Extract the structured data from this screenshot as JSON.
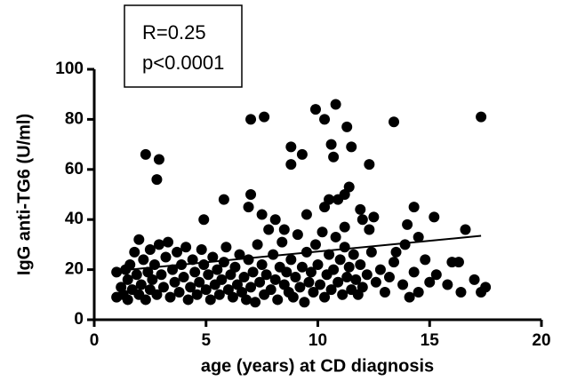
{
  "chart_data": {
    "type": "scatter",
    "xlabel": "age (years) at CD diagnosis",
    "ylabel": "IgG anti-TG6 (U/ml)",
    "annotations": [
      "R=0.25",
      "p<0.0001"
    ],
    "xlim": [
      0,
      20
    ],
    "xticks": [
      0,
      5,
      10,
      15,
      20
    ],
    "ylim": [
      0,
      100
    ],
    "yticks": [
      0,
      20,
      40,
      60,
      80,
      100
    ],
    "color": "#000000",
    "series": [
      {
        "x": [
          2.3,
          2.9,
          2.8,
          7.0,
          7.6,
          9.9,
          10.8,
          10.3,
          11.3,
          10.6,
          11.5,
          8.8,
          9.3,
          8.8,
          10.7,
          12.3,
          13.4,
          17.3,
          5.8,
          7.0,
          6.9,
          10.9,
          11.4,
          11.2,
          10.5,
          11.9,
          10.3,
          14.3,
          15.2,
          14.0,
          12.5,
          12.0,
          8.1,
          9.5,
          7.5,
          4.9,
          16.6,
          11.2,
          12.3,
          13.9,
          14.5,
          13.5,
          8.5,
          1.0,
          1.0,
          1.2,
          1.3,
          1.4,
          1.5,
          1.5,
          1.6,
          1.7,
          1.8,
          1.9,
          2.0,
          2.0,
          2.1,
          2.2,
          2.3,
          2.4,
          2.5,
          2.5,
          2.6,
          2.7,
          2.8,
          2.9,
          3.0,
          3.1,
          3.2,
          3.3,
          3.4,
          3.5,
          3.6,
          3.7,
          3.8,
          3.9,
          4.0,
          4.1,
          4.2,
          4.3,
          4.4,
          4.5,
          4.6,
          4.7,
          4.8,
          4.9,
          5.0,
          5.1,
          5.2,
          5.3,
          5.4,
          5.5,
          5.6,
          5.7,
          5.8,
          5.9,
          6.0,
          6.1,
          6.2,
          6.3,
          6.4,
          6.5,
          6.6,
          6.7,
          6.8,
          6.9,
          7.0,
          7.1,
          7.2,
          7.3,
          7.4,
          7.5,
          7.6,
          7.7,
          7.8,
          7.9,
          8.0,
          8.1,
          8.2,
          8.3,
          8.4,
          8.5,
          8.6,
          8.7,
          8.8,
          8.9,
          9.0,
          9.1,
          9.2,
          9.3,
          9.4,
          9.5,
          9.6,
          9.7,
          9.8,
          9.9,
          10.0,
          10.1,
          10.2,
          10.3,
          10.4,
          10.5,
          10.6,
          10.7,
          10.8,
          10.9,
          11.0,
          11.1,
          11.2,
          11.3,
          11.4,
          11.5,
          11.6,
          11.7,
          11.8,
          11.9,
          12.0,
          12.2,
          12.4,
          12.6,
          12.8,
          13.0,
          13.2,
          13.4,
          13.8,
          14.1,
          14.3,
          14.5,
          14.8,
          15.0,
          15.3,
          15.8,
          16.0,
          16.3,
          16.4,
          17.0,
          17.3,
          17.5
        ],
        "values": [
          66,
          64,
          56,
          80,
          81,
          84,
          86,
          80,
          77,
          70,
          69,
          69,
          66,
          62,
          65,
          62,
          79,
          81,
          48,
          50,
          45,
          48,
          53,
          50,
          48,
          44,
          45,
          45,
          41,
          38,
          41,
          40,
          40,
          42,
          42,
          40,
          36,
          37,
          36,
          30,
          33,
          27,
          36,
          9,
          19,
          13,
          10,
          20,
          16,
          8,
          22,
          12,
          27,
          18,
          32,
          10,
          14,
          24,
          8,
          19,
          28,
          12,
          16,
          22,
          10,
          30,
          18,
          13,
          25,
          31,
          9,
          20,
          15,
          27,
          11,
          22,
          17,
          29,
          8,
          13,
          24,
          19,
          10,
          15,
          28,
          22,
          12,
          18,
          8,
          25,
          14,
          20,
          10,
          16,
          23,
          29,
          12,
          18,
          9,
          21,
          14,
          26,
          11,
          17,
          8,
          24,
          13,
          19,
          7,
          30,
          15,
          22,
          10,
          18,
          36,
          12,
          26,
          16,
          8,
          21,
          31,
          14,
          19,
          11,
          24,
          9,
          17,
          34,
          13,
          21,
          7,
          27,
          15,
          19,
          11,
          30,
          22,
          14,
          35,
          9,
          18,
          26,
          12,
          20,
          33,
          15,
          24,
          10,
          29,
          17,
          21,
          12,
          26,
          16,
          10,
          22,
          13,
          18,
          27,
          15,
          20,
          11,
          17,
          23,
          14,
          9,
          19,
          11,
          24,
          15,
          18,
          14,
          23,
          23,
          11,
          16,
          11,
          13
        ]
      }
    ],
    "trend": {
      "x": [
        1,
        17.3
      ],
      "values": [
        19.5,
        33.5
      ]
    }
  }
}
